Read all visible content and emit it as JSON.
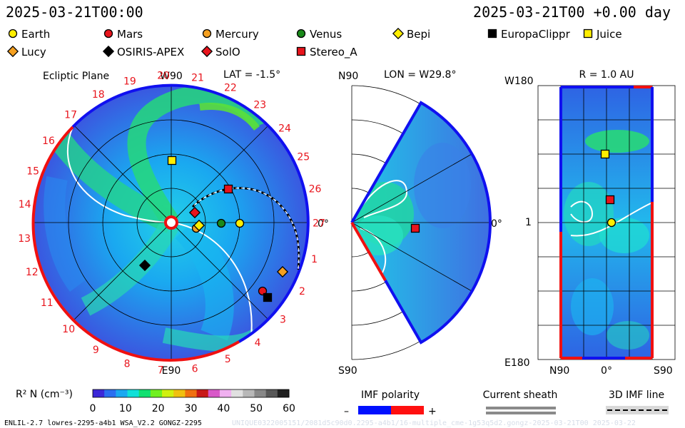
{
  "header": {
    "date_left": "2025-03-21T00:00",
    "date_right": "2025-03-21T00 +0.00 day"
  },
  "legend": {
    "spacecraft": [
      {
        "label": "Earth",
        "marker": "circle",
        "color": "#ffee00"
      },
      {
        "label": "Mars",
        "marker": "circle",
        "color": "#e8141c"
      },
      {
        "label": "Mercury",
        "marker": "circle",
        "color": "#f5a020"
      },
      {
        "label": "Venus",
        "marker": "circle",
        "color": "#1a8a1a"
      },
      {
        "label": "Bepi",
        "marker": "diamond",
        "color": "#ffee00"
      },
      {
        "label": "EuropaClippr",
        "marker": "square",
        "color": "#000000"
      },
      {
        "label": "Juice",
        "marker": "square",
        "color": "#ffee00"
      },
      {
        "label": "Lucy",
        "marker": "diamond",
        "color": "#f5a020"
      },
      {
        "label": "OSIRIS-APEX",
        "marker": "diamond",
        "color": "#000000"
      },
      {
        "label": "SolO",
        "marker": "diamond",
        "color": "#e8141c"
      },
      {
        "label": "Stereo_A",
        "marker": "square",
        "color": "#e8141c"
      }
    ]
  },
  "ecliptic": {
    "title": "Ecliptic Plane",
    "lat_label": "LAT = -1.5°",
    "top_label": "W90",
    "bottom_label": "E90",
    "right_label": "0°",
    "carrington_ticks": [
      "1",
      "2",
      "3",
      "4",
      "5",
      "6",
      "7",
      "8",
      "9",
      "10",
      "11",
      "12",
      "13",
      "14",
      "15",
      "16",
      "17",
      "18",
      "19",
      "20",
      "21",
      "22",
      "23",
      "24",
      "25",
      "26",
      "27"
    ]
  },
  "meridional": {
    "lon_label": "LON = W29.8°",
    "top_label": "N90",
    "bottom_label": "S90",
    "right_label": "0°"
  },
  "radial": {
    "r_label": "R = 1.0 AU",
    "top_label": "W180",
    "mid_label": "1",
    "bottom_label": "E180",
    "x_left": "N90",
    "x_mid": "0°",
    "x_right": "S90"
  },
  "colorbar": {
    "label": "R² N (cm⁻³)",
    "ticks": [
      "0",
      "10",
      "20",
      "30",
      "40",
      "50",
      "60"
    ],
    "colors": [
      "#3c28d8",
      "#2a6ef0",
      "#1aa8f0",
      "#10e0d8",
      "#10e070",
      "#70f020",
      "#d0f010",
      "#f0c010",
      "#f07010",
      "#c81818",
      "#d858c8",
      "#f0b0f0",
      "#e0e0e0",
      "#b8b8b8",
      "#888888",
      "#585858",
      "#202020"
    ]
  },
  "imf_legend": {
    "label": "IMF polarity",
    "minus": "–",
    "plus": "+",
    "colors": {
      "negative": "#0010ff",
      "positive": "#ff1010"
    }
  },
  "sheath_legend": {
    "label": "Current sheath"
  },
  "imf_line_legend": {
    "label": "3D IMF line"
  },
  "footer": {
    "left": "ENLIL-2.7 lowres-2295-a4b1 WSA_V2.2 GONGZ-2295",
    "right_faint": "UNIQUE0322005151/2081d5c90d0.2295-a4b1/16-multiple_cme-1g53q5d2.gongz-2025-03-21T00  2025-03-22"
  }
}
